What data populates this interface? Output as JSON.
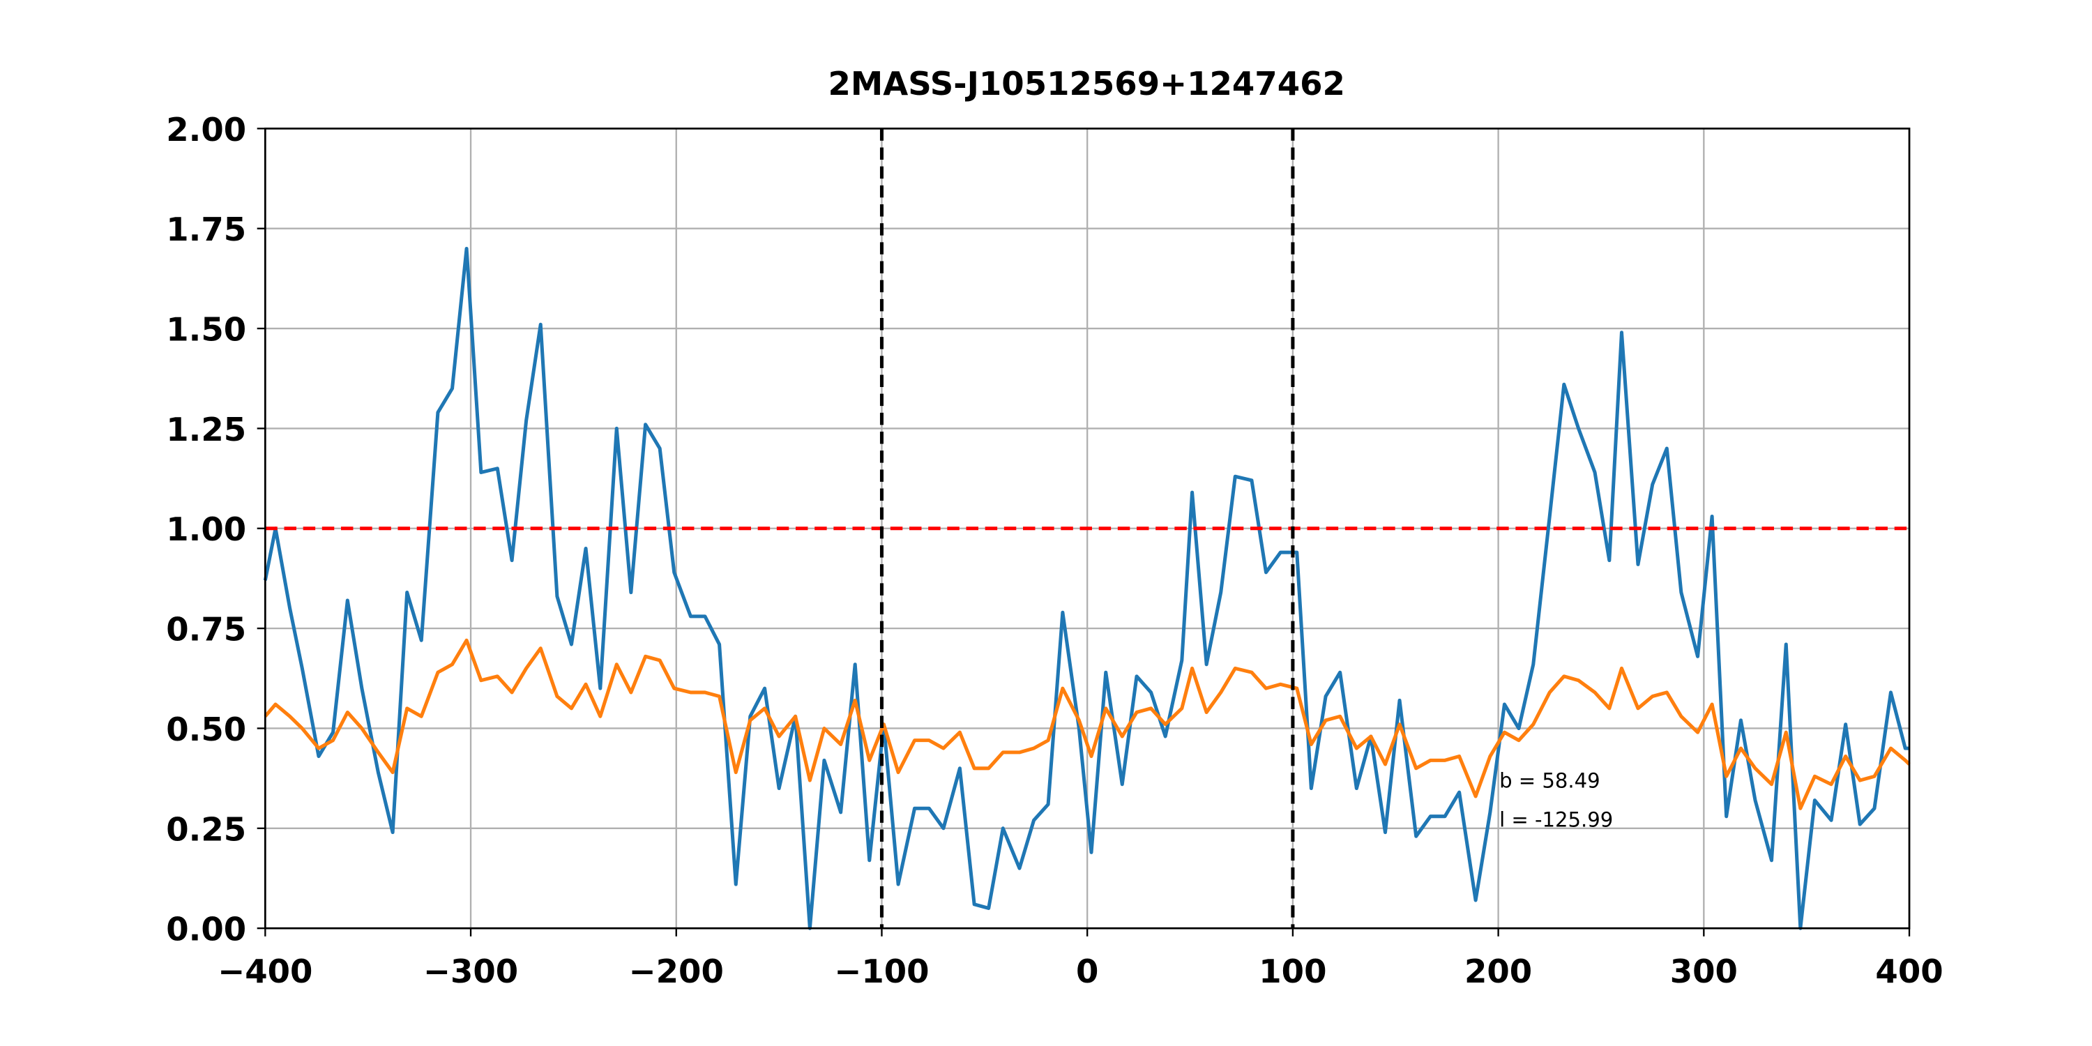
{
  "chart_data": {
    "type": "line",
    "title": "2MASS-J10512569+1247462",
    "x": [
      -400,
      -395,
      -388,
      -382,
      -374,
      -367,
      -360,
      -353,
      -345,
      -338,
      -331,
      -324,
      -316,
      -309,
      -302,
      -295,
      -287,
      -280,
      -273,
      -266,
      -258,
      -251,
      -244,
      -237,
      -229,
      -222,
      -215,
      -208,
      -201,
      -193,
      -186,
      -179,
      -171,
      -164,
      -157,
      -150,
      -142,
      -135,
      -128,
      -120,
      -113,
      -106,
      -99,
      -92,
      -84,
      -77,
      -70,
      -62,
      -55,
      -48,
      -41,
      -33,
      -26,
      -19,
      -12,
      -4,
      2,
      9,
      17,
      24,
      31,
      38,
      46,
      51,
      58,
      65,
      72,
      80,
      87,
      94,
      102,
      109,
      116,
      123,
      131,
      138,
      145,
      152,
      160,
      167,
      174,
      181,
      189,
      196,
      203,
      210,
      217,
      225,
      232,
      239,
      247,
      254,
      260,
      268,
      275,
      282,
      289,
      297,
      304,
      311,
      318,
      325,
      333,
      340,
      347,
      354,
      362,
      369,
      376,
      383,
      391,
      398,
      400
    ],
    "series": [
      {
        "color": "#1f77b4",
        "values": [
          0.87,
          1.0,
          0.8,
          0.65,
          0.43,
          0.49,
          0.82,
          0.6,
          0.39,
          0.24,
          0.84,
          0.72,
          1.29,
          1.35,
          1.7,
          1.14,
          1.15,
          0.92,
          1.27,
          1.51,
          0.83,
          0.71,
          0.95,
          0.6,
          1.25,
          0.84,
          1.26,
          1.2,
          0.89,
          0.78,
          0.78,
          0.71,
          0.11,
          0.53,
          0.6,
          0.35,
          0.53,
          0.0,
          0.42,
          0.29,
          0.66,
          0.17,
          0.51,
          0.11,
          0.3,
          0.3,
          0.25,
          0.4,
          0.06,
          0.05,
          0.25,
          0.15,
          0.27,
          0.31,
          0.79,
          0.5,
          0.19,
          0.64,
          0.36,
          0.63,
          0.59,
          0.48,
          0.67,
          1.09,
          0.66,
          0.84,
          1.13,
          1.12,
          0.89,
          0.94,
          0.94,
          0.35,
          0.58,
          0.64,
          0.35,
          0.48,
          0.24,
          0.57,
          0.23,
          0.28,
          0.28,
          0.34,
          0.07,
          0.29,
          0.56,
          0.5,
          0.66,
          1.03,
          1.36,
          1.25,
          1.14,
          0.92,
          1.49,
          0.91,
          1.11,
          1.2,
          0.84,
          0.68,
          1.03,
          0.28,
          0.52,
          0.32,
          0.17,
          0.71,
          0.0,
          0.32,
          0.27,
          0.51,
          0.26,
          0.3,
          0.59,
          0.45,
          0.45
        ]
      },
      {
        "color": "#ff7f0e",
        "values": [
          0.53,
          0.56,
          0.53,
          0.5,
          0.45,
          0.47,
          0.54,
          0.5,
          0.44,
          0.39,
          0.55,
          0.53,
          0.64,
          0.66,
          0.72,
          0.62,
          0.63,
          0.59,
          0.65,
          0.7,
          0.58,
          0.55,
          0.61,
          0.53,
          0.66,
          0.59,
          0.68,
          0.67,
          0.6,
          0.59,
          0.59,
          0.58,
          0.39,
          0.52,
          0.55,
          0.48,
          0.53,
          0.37,
          0.5,
          0.46,
          0.57,
          0.42,
          0.51,
          0.39,
          0.47,
          0.47,
          0.45,
          0.49,
          0.4,
          0.4,
          0.44,
          0.44,
          0.45,
          0.47,
          0.6,
          0.52,
          0.43,
          0.55,
          0.48,
          0.54,
          0.55,
          0.51,
          0.55,
          0.65,
          0.54,
          0.59,
          0.65,
          0.64,
          0.6,
          0.61,
          0.6,
          0.46,
          0.52,
          0.53,
          0.45,
          0.48,
          0.41,
          0.51,
          0.4,
          0.42,
          0.42,
          0.43,
          0.33,
          0.43,
          0.49,
          0.47,
          0.51,
          0.59,
          0.63,
          0.62,
          0.59,
          0.55,
          0.65,
          0.55,
          0.58,
          0.59,
          0.53,
          0.49,
          0.56,
          0.38,
          0.45,
          0.4,
          0.36,
          0.49,
          0.3,
          0.38,
          0.36,
          0.43,
          0.37,
          0.38,
          0.45,
          0.42,
          0.41
        ]
      }
    ],
    "hlines": [
      {
        "y": 1,
        "color": "#ff0000"
      }
    ],
    "vlines": [
      {
        "x": -100,
        "color": "#000000"
      },
      {
        "x": 100,
        "color": "#000000"
      }
    ],
    "annotations": [
      "b = 58.49",
      "l = -125.99"
    ],
    "xlim": [
      -400,
      400
    ],
    "ylim": [
      0,
      2
    ],
    "xticks": [
      {
        "value": -400,
        "label": "−400"
      },
      {
        "value": -300,
        "label": "−300"
      },
      {
        "value": -200,
        "label": "−200"
      },
      {
        "value": -100,
        "label": "−100"
      },
      0,
      100,
      200,
      300,
      400
    ],
    "yticks": [
      {
        "value": 0,
        "label": "0.00"
      },
      {
        "value": 0.25,
        "label": "0.25"
      },
      {
        "value": 0.5,
        "label": "0.50"
      },
      {
        "value": 0.75,
        "label": "0.75"
      },
      {
        "value": 1,
        "label": "1.00"
      },
      {
        "value": 1.25,
        "label": "1.25"
      },
      {
        "value": 1.5,
        "label": "1.50"
      },
      {
        "value": 1.75,
        "label": "1.75"
      },
      {
        "value": 2,
        "label": "2.00"
      }
    ],
    "grid": true
  }
}
